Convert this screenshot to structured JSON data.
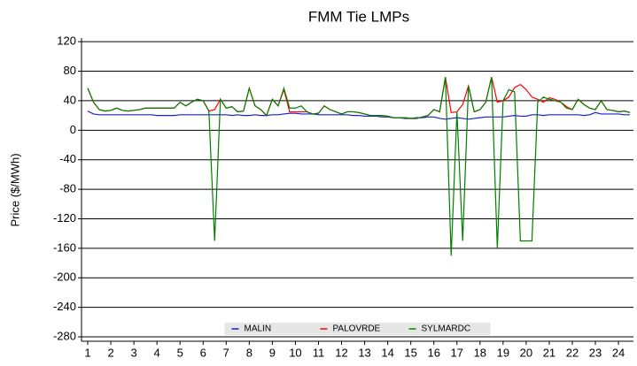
{
  "chart_data": {
    "type": "line",
    "title": "FMM Tie LMPs",
    "ylabel": "Price ($/MWh)",
    "x": [
      1,
      1.25,
      1.5,
      1.75,
      2,
      2.25,
      2.5,
      2.75,
      3,
      3.25,
      3.5,
      3.75,
      4,
      4.25,
      4.5,
      4.75,
      5,
      5.25,
      5.5,
      5.75,
      6,
      6.25,
      6.5,
      6.75,
      7,
      7.25,
      7.5,
      7.75,
      8,
      8.25,
      8.5,
      8.75,
      9,
      9.25,
      9.5,
      9.75,
      10,
      10.25,
      10.5,
      10.75,
      11,
      11.25,
      11.5,
      11.75,
      12,
      12.25,
      12.5,
      12.75,
      13,
      13.25,
      13.5,
      13.75,
      14,
      14.25,
      14.5,
      14.75,
      15,
      15.25,
      15.5,
      15.75,
      16,
      16.25,
      16.5,
      16.75,
      17,
      17.25,
      17.5,
      17.75,
      18,
      18.25,
      18.5,
      18.75,
      19,
      19.25,
      19.5,
      19.75,
      20,
      20.25,
      20.5,
      20.75,
      21,
      21.25,
      21.5,
      21.75,
      22,
      22.25,
      22.5,
      22.75,
      23,
      23.25,
      23.5,
      23.75,
      24,
      24.25,
      24.5
    ],
    "series": [
      {
        "name": "MALIN",
        "color": "#1c1cd8",
        "values": [
          26,
          22,
          21,
          21,
          21,
          21,
          21,
          21,
          21,
          21,
          21,
          21,
          20,
          20,
          20,
          20,
          21,
          21,
          21,
          21,
          21,
          21,
          21,
          21,
          21,
          20,
          21,
          20,
          20,
          21,
          20,
          20,
          21,
          21,
          22,
          23,
          23,
          22,
          22,
          22,
          21,
          21,
          21,
          21,
          21,
          21,
          20,
          20,
          19,
          19,
          19,
          18,
          18,
          17,
          17,
          16,
          16,
          17,
          17,
          18,
          18,
          16,
          15,
          16,
          17,
          16,
          15,
          16,
          17,
          18,
          18,
          18,
          18,
          19,
          20,
          19,
          19,
          21,
          21,
          20,
          21,
          21,
          21,
          21,
          21,
          21,
          20,
          21,
          24,
          22,
          22,
          22,
          22,
          21,
          21
        ]
      },
      {
        "name": "PALOVRDE",
        "color": "#ff0000",
        "values": [
          57,
          38,
          28,
          26,
          27,
          30,
          27,
          26,
          27,
          28,
          30,
          30,
          30,
          30,
          30,
          30,
          38,
          33,
          38,
          42,
          40,
          26,
          28,
          42,
          30,
          32,
          25,
          26,
          57,
          33,
          28,
          20,
          42,
          33,
          55,
          25,
          25,
          25,
          25,
          22,
          23,
          33,
          28,
          25,
          22,
          25,
          25,
          24,
          22,
          20,
          20,
          20,
          19,
          17,
          17,
          17,
          16,
          16,
          18,
          20,
          28,
          25,
          72,
          24,
          25,
          35,
          60,
          25,
          28,
          38,
          72,
          38,
          40,
          45,
          58,
          62,
          55,
          45,
          42,
          38,
          44,
          42,
          38,
          32,
          28,
          42,
          35,
          30,
          28,
          40,
          28,
          27,
          25,
          26,
          24
        ]
      },
      {
        "name": "SYLMARDC",
        "color": "#008000",
        "values": [
          57,
          38,
          28,
          26,
          27,
          30,
          27,
          26,
          27,
          28,
          30,
          30,
          30,
          30,
          30,
          30,
          38,
          33,
          38,
          42,
          40,
          26,
          -150,
          42,
          30,
          32,
          25,
          26,
          57,
          33,
          28,
          20,
          42,
          33,
          57,
          30,
          30,
          33,
          25,
          22,
          23,
          33,
          28,
          25,
          22,
          25,
          25,
          24,
          22,
          20,
          20,
          20,
          19,
          17,
          17,
          17,
          16,
          16,
          18,
          20,
          28,
          25,
          72,
          -170,
          25,
          -150,
          60,
          25,
          28,
          38,
          72,
          -160,
          40,
          55,
          52,
          -150,
          -150,
          -150,
          38,
          45,
          42,
          40,
          38,
          30,
          28,
          42,
          35,
          30,
          28,
          40,
          28,
          27,
          25,
          26,
          24
        ]
      }
    ],
    "xlim": [
      0.73,
      24.65
    ],
    "xticks": [
      1,
      2,
      3,
      4,
      5,
      6,
      7,
      8,
      9,
      10,
      11,
      12,
      13,
      14,
      15,
      16,
      17,
      18,
      19,
      20,
      21,
      22,
      23,
      24
    ],
    "ylim": [
      -286,
      125
    ],
    "yticks": [
      -280,
      -240,
      -200,
      -160,
      -120,
      -80,
      -40,
      0,
      40,
      80,
      120
    ],
    "grid": true,
    "legend": "lower center"
  }
}
